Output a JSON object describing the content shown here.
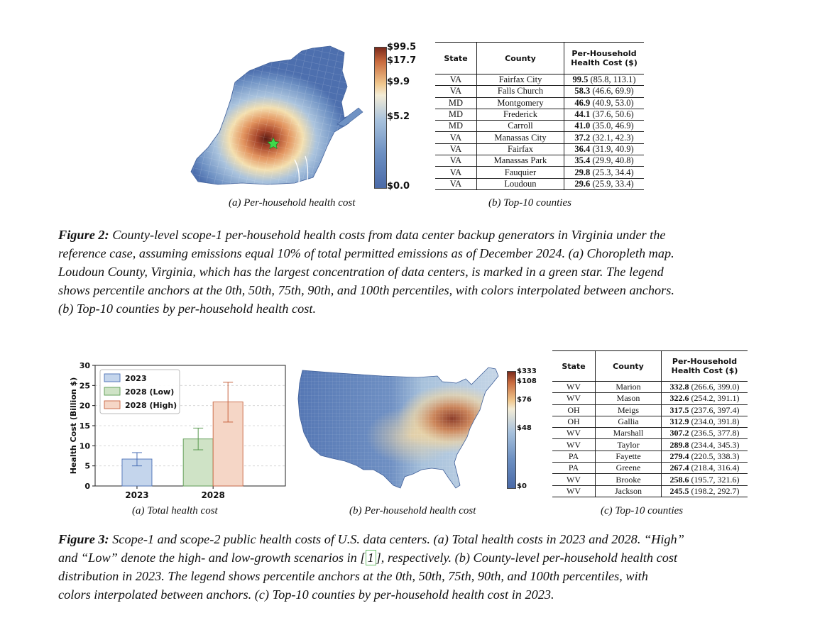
{
  "figure2": {
    "map": {
      "legend_ticks": [
        "$99.5",
        "$17.7",
        "$9.9",
        "$5.2",
        "$0.0"
      ]
    },
    "subcaption_a": {
      "label": "(a)",
      "text": "Per-household health cost"
    },
    "subcaption_b": {
      "label": "(b)",
      "text": "Top-10 counties"
    },
    "table": {
      "headers": {
        "state": "State",
        "county": "County",
        "cost_line1": "Per-Household",
        "cost_line2": "Health Cost ($)"
      },
      "rows": [
        {
          "state": "VA",
          "county": "Fairfax City",
          "value": "99.5",
          "range": "(85.8, 113.1)"
        },
        {
          "state": "VA",
          "county": "Falls Church",
          "value": "58.3",
          "range": "(46.6, 69.9)"
        },
        {
          "state": "MD",
          "county": "Montgomery",
          "value": "46.9",
          "range": "(40.9, 53.0)"
        },
        {
          "state": "MD",
          "county": "Frederick",
          "value": "44.1",
          "range": "(37.6, 50.6)"
        },
        {
          "state": "MD",
          "county": "Carroll",
          "value": "41.0",
          "range": "(35.0, 46.9)"
        },
        {
          "state": "VA",
          "county": "Manassas City",
          "value": "37.2",
          "range": "(32.1, 42.3)"
        },
        {
          "state": "VA",
          "county": "Fairfax",
          "value": "36.4",
          "range": "(31.9, 40.9)"
        },
        {
          "state": "VA",
          "county": "Manassas Park",
          "value": "35.4",
          "range": "(29.9, 40.8)"
        },
        {
          "state": "VA",
          "county": "Fauquier",
          "value": "29.8",
          "range": "(25.3, 34.4)"
        },
        {
          "state": "VA",
          "county": "Loudoun",
          "value": "29.6",
          "range": "(25.9, 33.4)"
        }
      ]
    },
    "caption": {
      "label": "Figure 2:",
      "line1": "County-level scope-1 per-household health costs from data center backup generators in Virginia under the",
      "line2": "reference case, assuming emissions equal 10% of total permitted emissions as of December 2024. (a) Choropleth map.",
      "line3": "Loudoun County, Virginia, which has the largest concentration of data centers, is marked in a green star. The legend",
      "line4": "shows percentile anchors at the 0th, 50th, 75th, 90th, and 100th percentiles, with colors interpolated between anchors.",
      "line5": "(b) Top-10 counties by per-household health cost."
    }
  },
  "figure3": {
    "subcaption_a": {
      "label": "(a)",
      "text": "Total health cost"
    },
    "subcaption_b": {
      "label": "(b)",
      "text": "Per-household health cost"
    },
    "subcaption_c": {
      "label": "(c)",
      "text": "Top-10 counties"
    },
    "map": {
      "legend_ticks": [
        "$333",
        "$108",
        "$76",
        "$48",
        "$0"
      ]
    },
    "chart_data": {
      "type": "bar",
      "categories": [
        "2023",
        "2028"
      ],
      "ylabel": "Health Cost (Billion $)",
      "xlabel": "",
      "ylim": [
        0,
        30
      ],
      "yticks": [
        "0",
        "5",
        "10",
        "15",
        "20",
        "25",
        "30"
      ],
      "grid": true,
      "legend_placement": "top-left",
      "series": [
        {
          "name": "2023",
          "category": "2023",
          "value": 6.7,
          "err_low": 5.0,
          "err_high": 8.3,
          "color": "#c4d5ec",
          "edge": "#4a6fb5"
        },
        {
          "name": "2028 (Low)",
          "category": "2028",
          "value": 11.7,
          "err_low": 9.0,
          "err_high": 14.4,
          "color": "#cfe3c6",
          "edge": "#5a9a50"
        },
        {
          "name": "2028 (High)",
          "category": "2028",
          "value": 20.9,
          "err_low": 15.9,
          "err_high": 25.8,
          "color": "#f5d6c6",
          "edge": "#c86440"
        }
      ]
    },
    "table": {
      "headers": {
        "state": "State",
        "county": "County",
        "cost_line1": "Per-Household",
        "cost_line2": "Health Cost ($)"
      },
      "rows": [
        {
          "state": "WV",
          "county": "Marion",
          "value": "332.8",
          "range": "(266.6, 399.0)"
        },
        {
          "state": "WV",
          "county": "Mason",
          "value": "322.6",
          "range": "(254.2, 391.1)"
        },
        {
          "state": "OH",
          "county": "Meigs",
          "value": "317.5",
          "range": "(237.6, 397.4)"
        },
        {
          "state": "OH",
          "county": "Gallia",
          "value": "312.9",
          "range": "(234.0, 391.8)"
        },
        {
          "state": "WV",
          "county": "Marshall",
          "value": "307.2",
          "range": "(236.5, 377.8)"
        },
        {
          "state": "WV",
          "county": "Taylor",
          "value": "289.8",
          "range": "(234.4, 345.3)"
        },
        {
          "state": "PA",
          "county": "Fayette",
          "value": "279.4",
          "range": "(220.5, 338.3)"
        },
        {
          "state": "PA",
          "county": "Greene",
          "value": "267.4",
          "range": "(218.4, 316.4)"
        },
        {
          "state": "WV",
          "county": "Brooke",
          "value": "258.6",
          "range": "(195.7, 321.6)"
        },
        {
          "state": "WV",
          "county": "Jackson",
          "value": "245.5",
          "range": "(198.2, 292.7)"
        }
      ]
    },
    "caption": {
      "label": "Figure 3:",
      "line1": "Scope-1 and scope-2 public health costs of U.S. data centers. (a) Total health costs in 2023 and 2028. “High”",
      "line2a": "and “Low” denote the high- and low-growth scenarios in [",
      "ref": "1",
      "line2b": "], respectively. (b) County-level per-household health cost",
      "line3": "distribution in 2023. The legend shows percentile anchors at the 0th, 50th, 75th, 90th, and 100th percentiles, with",
      "line4": "colors interpolated between anchors. (c) Top-10 counties by per-household health cost in 2023."
    }
  }
}
